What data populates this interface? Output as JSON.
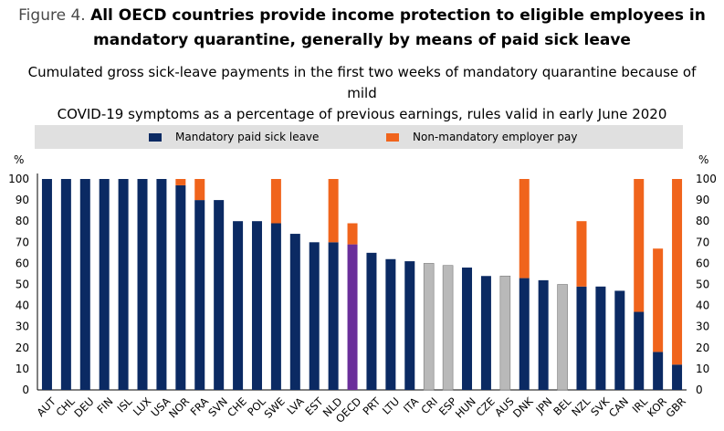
{
  "figure_label": "Figure 4.",
  "title_line1": "All OECD countries provide income protection to eligible employees in",
  "title_line2": "mandatory quarantine, generally by means of paid sick leave",
  "subtitle_line1": "Cumulated gross sick-leave payments in the first two weeks of mandatory quarantine because of mild",
  "subtitle_line2": "COVID-19 symptoms as a percentage of previous earnings, rules valid in early June 2020",
  "colors": {
    "mandatory": "#0b2a63",
    "nonmandatory": "#f0641c",
    "oecd": "#6a2e9a",
    "nonmember": "#b9b9b9",
    "legend_bg": "#e0e0e0"
  },
  "chart_data": {
    "type": "bar",
    "stacked": true,
    "title": "All OECD countries provide income protection to eligible employees in mandatory quarantine, generally by means of paid sick leave",
    "ylabel": "%",
    "ylim": [
      0,
      100
    ],
    "yticks": [
      0,
      10,
      20,
      30,
      40,
      50,
      60,
      70,
      80,
      90,
      100
    ],
    "legend_position": "top",
    "categories": [
      "AUT",
      "CHL",
      "DEU",
      "FIN",
      "ISL",
      "LUX",
      "USA",
      "NOR",
      "FRA",
      "SVN",
      "CHE",
      "POL",
      "SWE",
      "LVA",
      "EST",
      "NLD",
      "OECD",
      "PRT",
      "LTU",
      "ITA",
      "CRI",
      "ESP",
      "HUN",
      "CZE",
      "AUS",
      "DNK",
      "JPN",
      "BEL",
      "NZL",
      "SVK",
      "CAN",
      "IRL",
      "KOR",
      "GBR"
    ],
    "bar_kind": [
      "member",
      "member",
      "member",
      "member",
      "member",
      "member",
      "member",
      "member",
      "member",
      "member",
      "member",
      "member",
      "member",
      "member",
      "member",
      "member",
      "oecd",
      "member",
      "member",
      "member",
      "grey",
      "grey",
      "member",
      "member",
      "grey",
      "member",
      "member",
      "grey",
      "member",
      "member",
      "member",
      "member",
      "member",
      "member"
    ],
    "series": [
      {
        "name": "Mandatory paid sick leave",
        "values": [
          100,
          100,
          100,
          100,
          100,
          100,
          100,
          97,
          90,
          90,
          80,
          80,
          79,
          74,
          70,
          70,
          69,
          65,
          62,
          61,
          60,
          59,
          58,
          54,
          54,
          53,
          52,
          50,
          49,
          49,
          47,
          37,
          18,
          12
        ]
      },
      {
        "name": "Non-mandatory employer pay",
        "values": [
          0,
          0,
          0,
          0,
          0,
          0,
          0,
          3,
          10,
          0,
          0,
          0,
          21,
          0,
          0,
          30,
          10,
          0,
          0,
          0,
          0,
          0,
          0,
          0,
          0,
          47,
          0,
          0,
          31,
          0,
          0,
          63,
          49,
          88
        ]
      }
    ]
  }
}
